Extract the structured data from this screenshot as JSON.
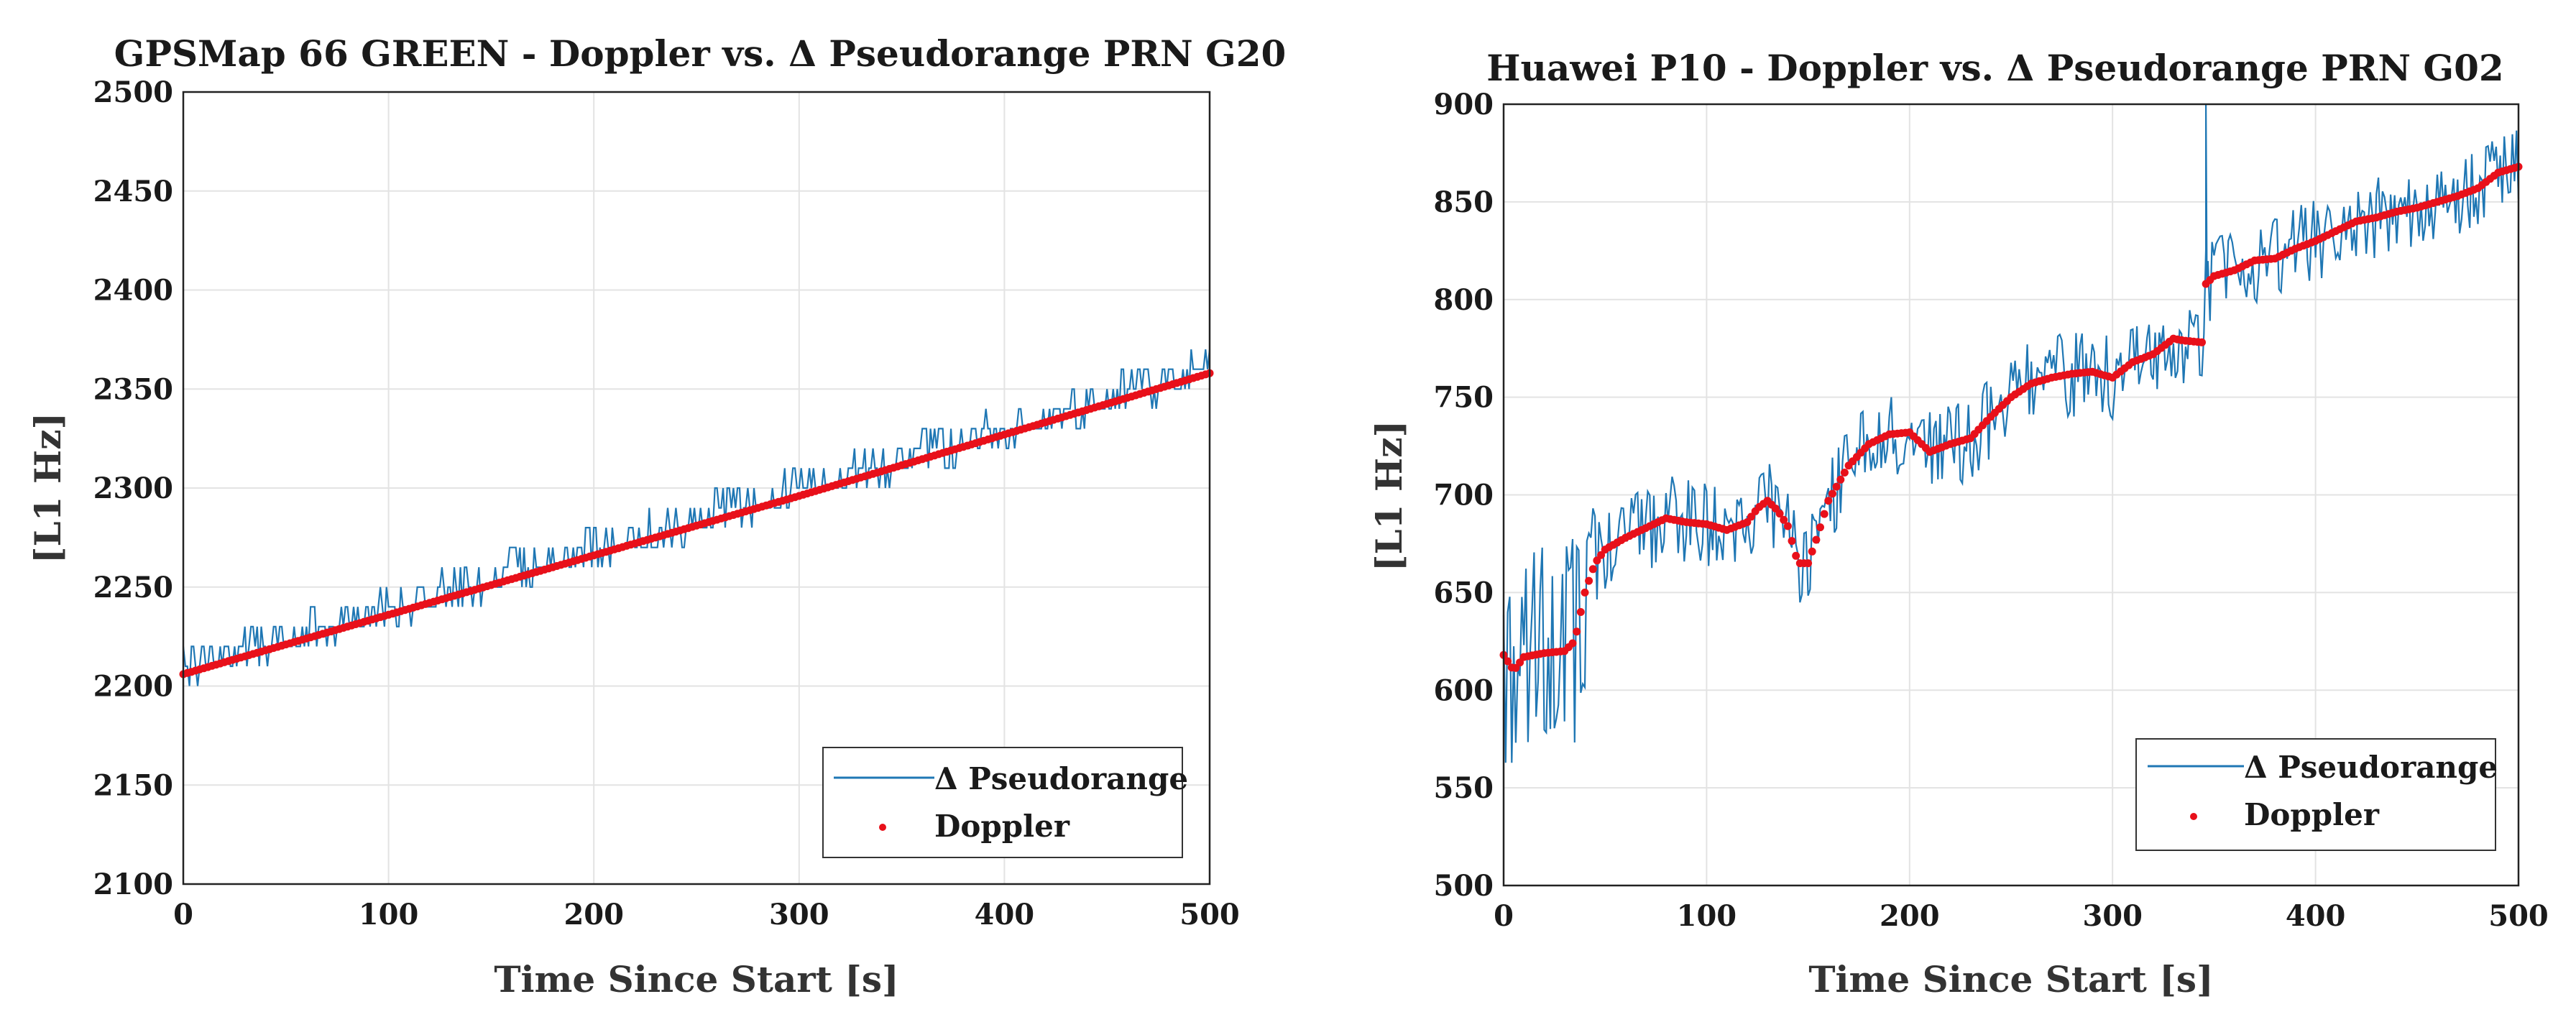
{
  "chart_data": [
    {
      "type": "line",
      "title": "GPSMap 66 GREEN - Doppler vs. Δ Pseudorange PRN G20",
      "xlabel": "Time Since Start [s]",
      "ylabel": "[L1 Hz]",
      "xlim": [
        0,
        500
      ],
      "ylim": [
        2100,
        2500
      ],
      "xticks": [
        0,
        100,
        200,
        300,
        400,
        500
      ],
      "yticks": [
        2100,
        2150,
        2200,
        2250,
        2300,
        2350,
        2400,
        2450,
        2500
      ],
      "grid": true,
      "legend_position": "bottom-right",
      "series": [
        {
          "name": "Δ Pseudorange",
          "style": "line",
          "color": "#1f77b4",
          "model": {
            "start": 2207,
            "end": 2358,
            "noise": 10,
            "quantization": 10,
            "samples": 500
          }
        },
        {
          "name": "Doppler",
          "style": "dots",
          "color": "#e8101a",
          "x": [
            0,
            100,
            200,
            300,
            400,
            500
          ],
          "y": [
            2206,
            2236,
            2266,
            2296,
            2327,
            2358
          ]
        }
      ]
    },
    {
      "type": "line",
      "title": "Huawei P10 - Doppler vs. Δ Pseudorange PRN G02",
      "xlabel": "Time Since Start [s]",
      "ylabel": "[L1 Hz]",
      "xlim": [
        0,
        500
      ],
      "ylim": [
        500,
        900
      ],
      "xticks": [
        0,
        100,
        200,
        300,
        400,
        500
      ],
      "yticks": [
        500,
        550,
        600,
        650,
        700,
        750,
        800,
        850,
        900
      ],
      "grid": true,
      "legend_position": "bottom-right",
      "series": [
        {
          "name": "Δ Pseudorange",
          "style": "line",
          "color": "#1f77b4",
          "model": {
            "follows": "Doppler",
            "noise_profile": [
              [
                0,
                55
              ],
              [
                40,
                55
              ],
              [
                50,
                22
              ],
              [
                350,
                22
              ],
              [
                500,
                20
              ]
            ],
            "spike": {
              "x": 346,
              "y": 900
            },
            "samples": 500
          }
        },
        {
          "name": "Doppler",
          "style": "dots",
          "color": "#e8101a",
          "x": [
            0,
            5,
            10,
            20,
            30,
            35,
            40,
            45,
            50,
            60,
            70,
            80,
            90,
            100,
            110,
            120,
            125,
            130,
            135,
            140,
            145,
            150,
            155,
            160,
            170,
            180,
            190,
            200,
            210,
            220,
            230,
            240,
            250,
            260,
            270,
            280,
            290,
            300,
            310,
            320,
            330,
            335,
            345,
            346,
            350,
            360,
            370,
            380,
            390,
            400,
            410,
            420,
            430,
            440,
            450,
            460,
            470,
            480,
            490,
            500
          ],
          "y": [
            618,
            610,
            617,
            619,
            620,
            625,
            650,
            665,
            672,
            678,
            683,
            688,
            686,
            685,
            682,
            686,
            693,
            697,
            692,
            684,
            665,
            665,
            680,
            697,
            715,
            726,
            731,
            732,
            722,
            726,
            729,
            740,
            750,
            757,
            760,
            762,
            763,
            760,
            768,
            772,
            780,
            779,
            778,
            808,
            812,
            815,
            820,
            821,
            826,
            830,
            835,
            840,
            842,
            845,
            847,
            850,
            853,
            857,
            865,
            868
          ]
        }
      ]
    }
  ]
}
